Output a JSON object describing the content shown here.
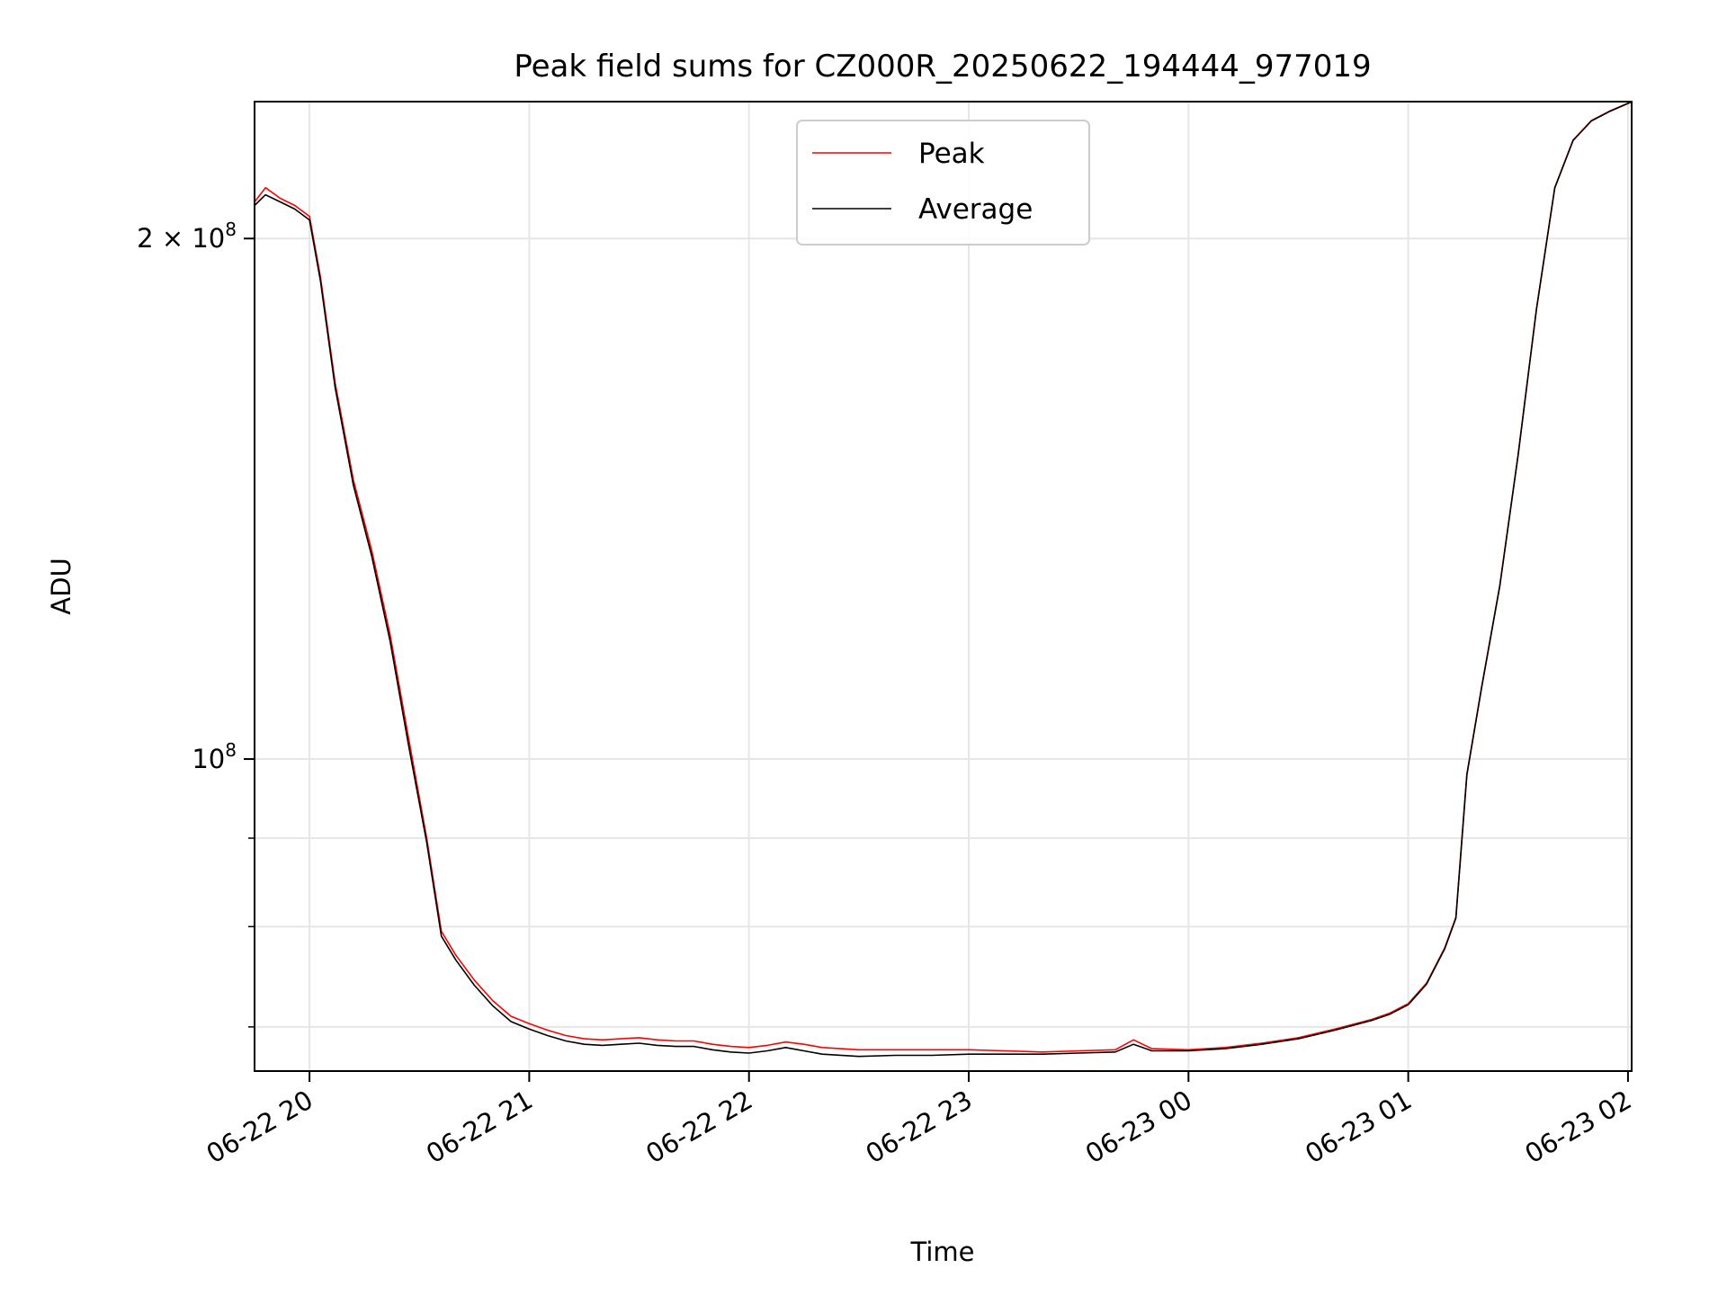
{
  "chart_data": {
    "type": "line",
    "title": "Peak field sums for CZ000R_20250622_194444_977019",
    "xlabel": "Time",
    "ylabel": "ADU",
    "x_scale": "time",
    "y_scale": "log",
    "xlim": [
      "2025-06-22 19:45",
      "2025-06-23 02:01"
    ],
    "ylim": [
      66000000,
      240000000
    ],
    "x_ticks": [
      {
        "value": "2025-06-22 20:00",
        "label": "06-22 20"
      },
      {
        "value": "2025-06-22 21:00",
        "label": "06-22 21"
      },
      {
        "value": "2025-06-22 22:00",
        "label": "06-22 22"
      },
      {
        "value": "2025-06-22 23:00",
        "label": "06-22 23"
      },
      {
        "value": "2025-06-23 00:00",
        "label": "06-23 00"
      },
      {
        "value": "2025-06-23 01:00",
        "label": "06-23 01"
      },
      {
        "value": "2025-06-23 02:00",
        "label": "06-23 02"
      }
    ],
    "y_ticks_major": [
      {
        "value": 100000000,
        "base": "10",
        "exp": "8",
        "mult": ""
      },
      {
        "value": 200000000,
        "base": "10",
        "exp": "8",
        "mult": "2 × "
      }
    ],
    "y_ticks_minor": [
      70000000,
      80000000,
      90000000
    ],
    "grid": true,
    "legend": "top-center",
    "series": [
      {
        "name": "Peak",
        "color": "#ff0000",
        "x": [
          "2025-06-22 19:45",
          "2025-06-22 19:48",
          "2025-06-22 19:52",
          "2025-06-22 19:56",
          "2025-06-22 20:00",
          "2025-06-22 20:03",
          "2025-06-22 20:07",
          "2025-06-22 20:12",
          "2025-06-22 20:17",
          "2025-06-22 20:22",
          "2025-06-22 20:27",
          "2025-06-22 20:32",
          "2025-06-22 20:36",
          "2025-06-22 20:40",
          "2025-06-22 20:45",
          "2025-06-22 20:50",
          "2025-06-22 20:55",
          "2025-06-22 21:00",
          "2025-06-22 21:05",
          "2025-06-22 21:10",
          "2025-06-22 21:15",
          "2025-06-22 21:20",
          "2025-06-22 21:25",
          "2025-06-22 21:30",
          "2025-06-22 21:35",
          "2025-06-22 21:40",
          "2025-06-22 21:45",
          "2025-06-22 21:50",
          "2025-06-22 21:55",
          "2025-06-22 22:00",
          "2025-06-22 22:05",
          "2025-06-22 22:10",
          "2025-06-22 22:15",
          "2025-06-22 22:20",
          "2025-06-22 22:30",
          "2025-06-22 22:40",
          "2025-06-22 22:50",
          "2025-06-22 23:00",
          "2025-06-22 23:10",
          "2025-06-22 23:20",
          "2025-06-22 23:30",
          "2025-06-22 23:40",
          "2025-06-22 23:45",
          "2025-06-22 23:50",
          "2025-06-23 00:00",
          "2025-06-23 00:10",
          "2025-06-23 00:20",
          "2025-06-23 00:30",
          "2025-06-23 00:40",
          "2025-06-23 00:50",
          "2025-06-23 00:55",
          "2025-06-23 01:00",
          "2025-06-23 01:05",
          "2025-06-23 01:10",
          "2025-06-23 01:13",
          "2025-06-23 01:16",
          "2025-06-23 01:20",
          "2025-06-23 01:25",
          "2025-06-23 01:30",
          "2025-06-23 01:35",
          "2025-06-23 01:40",
          "2025-06-23 01:45",
          "2025-06-23 01:50",
          "2025-06-23 01:55",
          "2025-06-23 02:01"
        ],
        "y": [
          210000000,
          214000000,
          211000000,
          209000000,
          206000000,
          190000000,
          165000000,
          145000000,
          132000000,
          118000000,
          103000000,
          90000000,
          79500000,
          77000000,
          74500000,
          72500000,
          71000000,
          70300000,
          69700000,
          69200000,
          68900000,
          68800000,
          68900000,
          69000000,
          68800000,
          68700000,
          68700000,
          68400000,
          68200000,
          68100000,
          68300000,
          68600000,
          68400000,
          68100000,
          67900000,
          67900000,
          67900000,
          67900000,
          67800000,
          67700000,
          67800000,
          67900000,
          68800000,
          68000000,
          67900000,
          68100000,
          68500000,
          69000000,
          69800000,
          70700000,
          71300000,
          72200000,
          74200000,
          77800000,
          81000000,
          98000000,
          110000000,
          126000000,
          150000000,
          182000000,
          214000000,
          228000000,
          234000000,
          237000000,
          240000000
        ]
      },
      {
        "name": "Average",
        "color": "#000000",
        "x": [
          "2025-06-22 19:45",
          "2025-06-22 19:48",
          "2025-06-22 19:52",
          "2025-06-22 19:56",
          "2025-06-22 20:00",
          "2025-06-22 20:03",
          "2025-06-22 20:07",
          "2025-06-22 20:12",
          "2025-06-22 20:17",
          "2025-06-22 20:22",
          "2025-06-22 20:27",
          "2025-06-22 20:32",
          "2025-06-22 20:36",
          "2025-06-22 20:40",
          "2025-06-22 20:45",
          "2025-06-22 20:50",
          "2025-06-22 20:55",
          "2025-06-22 21:00",
          "2025-06-22 21:05",
          "2025-06-22 21:10",
          "2025-06-22 21:15",
          "2025-06-22 21:20",
          "2025-06-22 21:25",
          "2025-06-22 21:30",
          "2025-06-22 21:35",
          "2025-06-22 21:40",
          "2025-06-22 21:45",
          "2025-06-22 21:50",
          "2025-06-22 21:55",
          "2025-06-22 22:00",
          "2025-06-22 22:05",
          "2025-06-22 22:10",
          "2025-06-22 22:15",
          "2025-06-22 22:20",
          "2025-06-22 22:30",
          "2025-06-22 22:40",
          "2025-06-22 22:50",
          "2025-06-22 23:00",
          "2025-06-22 23:10",
          "2025-06-22 23:20",
          "2025-06-22 23:30",
          "2025-06-22 23:40",
          "2025-06-22 23:45",
          "2025-06-22 23:50",
          "2025-06-23 00:00",
          "2025-06-23 00:10",
          "2025-06-23 00:20",
          "2025-06-23 00:30",
          "2025-06-23 00:40",
          "2025-06-23 00:50",
          "2025-06-23 00:55",
          "2025-06-23 01:00",
          "2025-06-23 01:05",
          "2025-06-23 01:10",
          "2025-06-23 01:13",
          "2025-06-23 01:16",
          "2025-06-23 01:20",
          "2025-06-23 01:25",
          "2025-06-23 01:30",
          "2025-06-23 01:35",
          "2025-06-23 01:40",
          "2025-06-23 01:45",
          "2025-06-23 01:50",
          "2025-06-23 01:55",
          "2025-06-23 02:01"
        ],
        "y": [
          209000000,
          212000000,
          210000000,
          208000000,
          205000000,
          189000000,
          164000000,
          144000000,
          131000000,
          117000000,
          102000000,
          89500000,
          79000000,
          76500000,
          74000000,
          72000000,
          70500000,
          69800000,
          69200000,
          68700000,
          68400000,
          68300000,
          68400000,
          68500000,
          68300000,
          68200000,
          68200000,
          67900000,
          67700000,
          67600000,
          67800000,
          68100000,
          67800000,
          67500000,
          67300000,
          67400000,
          67400000,
          67500000,
          67500000,
          67500000,
          67600000,
          67700000,
          68400000,
          67800000,
          67800000,
          68000000,
          68400000,
          68900000,
          69700000,
          70600000,
          71200000,
          72100000,
          74100000,
          77700000,
          80900000,
          97900000,
          109900000,
          125900000,
          149900000,
          181900000,
          213900000,
          227900000,
          233900000,
          236900000,
          239900000
        ]
      }
    ]
  }
}
